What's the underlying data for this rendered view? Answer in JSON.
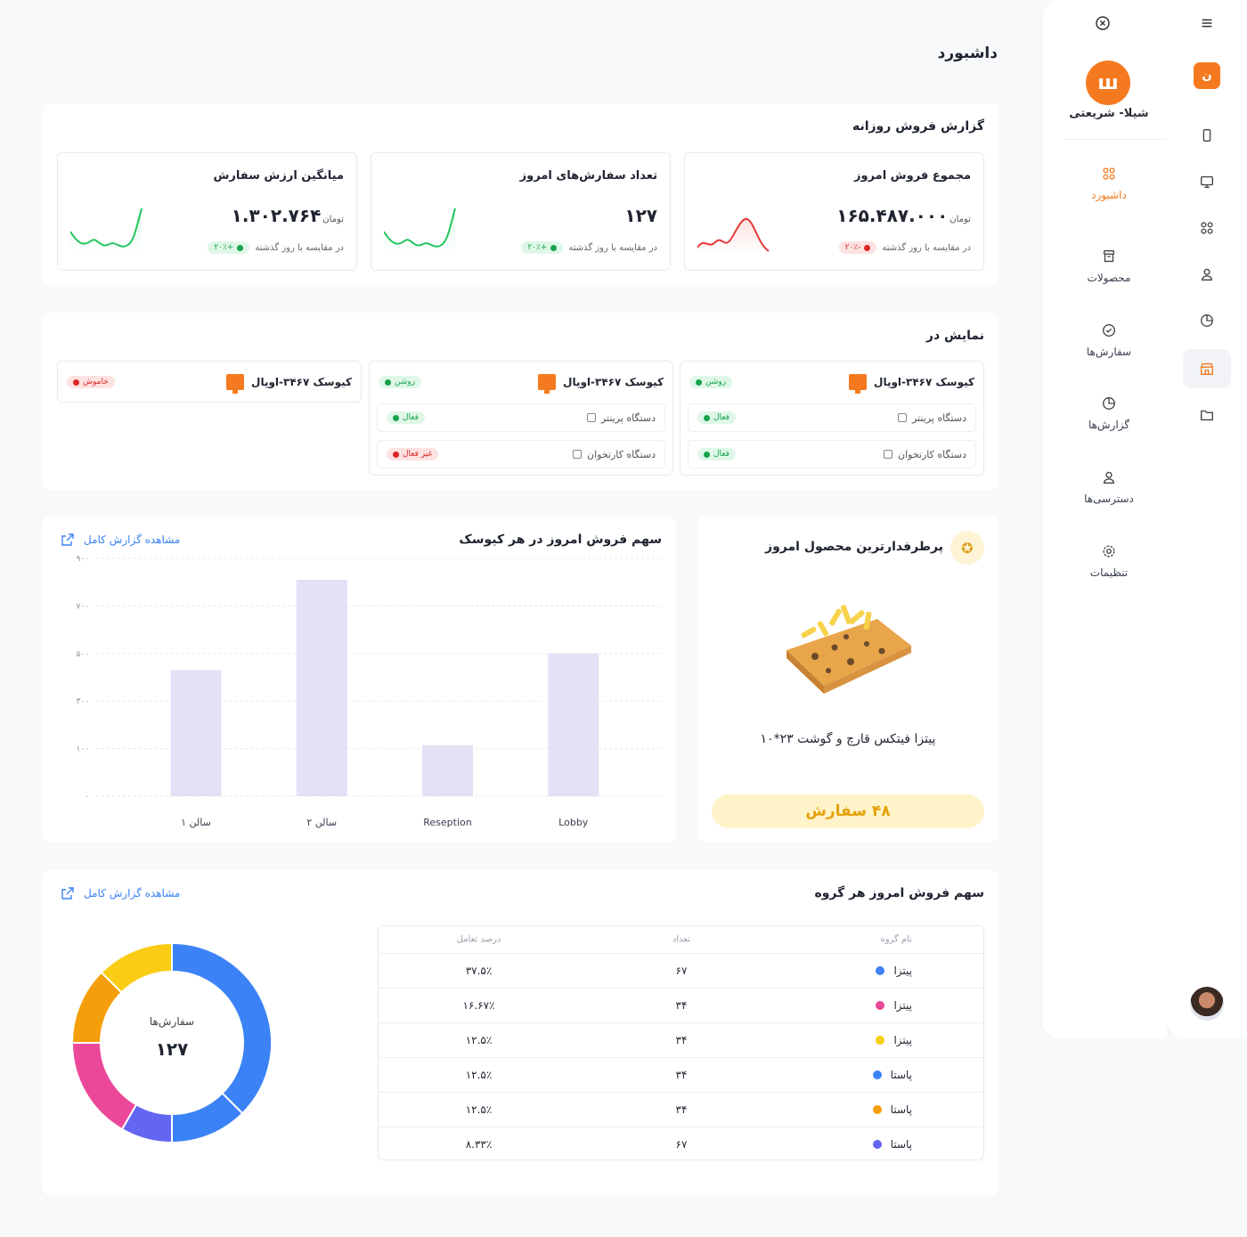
{
  "page_title": "داشبورد",
  "sidebar": {
    "brand_initial": "ن",
    "logo_glyph": "ш",
    "brand_name": "شیلا- شریعتی",
    "items": [
      {
        "label": "داشبورد",
        "icon": "grid-icon",
        "active": true
      },
      {
        "label": "محصولات",
        "icon": "archive-icon",
        "active": false
      },
      {
        "label": "سفارش‌ها",
        "icon": "check-circle-icon",
        "active": false
      },
      {
        "label": "گزارش‌ها",
        "icon": "pie-chart-icon",
        "active": false
      },
      {
        "label": "دسترسی‌ها",
        "icon": "user-icon",
        "active": false
      },
      {
        "label": "تنظیمات",
        "icon": "settings-icon",
        "active": false
      }
    ]
  },
  "daily_report": {
    "title": "گزارش فروش روزانه",
    "stats": [
      {
        "title": "مجموع فروش امروز",
        "value": "۱۶۵.۴۸۷.۰۰۰",
        "unit": "تومان",
        "change": "-۲۰٪",
        "trend": "negative",
        "compare_text": "در مقایسه با روز گذشته"
      },
      {
        "title": "تعداد سفارش‌های امروز",
        "value": "۱۲۷",
        "unit": "",
        "change": "+۲۰٪",
        "trend": "positive",
        "compare_text": "در مقایسه با روز گذشته"
      },
      {
        "title": "میانگین ارزش سفارش",
        "value": "۱.۳۰۲.۷۶۴",
        "unit": "تومان",
        "change": "+۲۰٪",
        "trend": "positive",
        "compare_text": "در مقایسه با روز گذشته"
      }
    ]
  },
  "display": {
    "title": "نمایش در",
    "kiosks": [
      {
        "name": "کیوسک ۳۴۶۷-اوپال",
        "status": "روشن",
        "state": "on",
        "devices": [
          {
            "name": "دستگاه پرینتر",
            "status": "فعال",
            "state": "on"
          },
          {
            "name": "دستگاه کارتخوان",
            "status": "فعال",
            "state": "on"
          }
        ]
      },
      {
        "name": "کیوسک ۳۴۶۷-اوپال",
        "status": "روشن",
        "state": "on",
        "devices": [
          {
            "name": "دستگاه پرینتر",
            "status": "فعال",
            "state": "on"
          },
          {
            "name": "دستگاه کارتخوان",
            "status": "غیر فعال",
            "state": "off"
          }
        ]
      },
      {
        "name": "کیوسک ۳۴۶۷-اوپال",
        "status": "خاموش",
        "state": "off",
        "devices": []
      }
    ]
  },
  "top_product": {
    "title": "پرطرفدارترین محصول امروز",
    "name": "پیتزا فیتکس قارچ و گوشت ۲۳*۱۰",
    "orders": "۴۸ سفارش"
  },
  "kiosk_sales": {
    "title": "سهم فروش امروز در هر کیوسک",
    "link": "مشاهده گزارش کامل"
  },
  "chart_data": {
    "type": "bar",
    "title": "سهم فروش امروز در هر کیوسک",
    "categories": [
      "سالن ۱",
      "سالن ۲",
      "Reseption",
      "Lobby"
    ],
    "values": [
      530,
      910,
      215,
      600
    ],
    "yticks": [
      "۹۰۰",
      "۷۰۰",
      "۵۰۰",
      "۳۰۰",
      "۱۰۰",
      "۰"
    ],
    "ylim": [
      0,
      1000
    ],
    "grid": true,
    "bar_color": "#e4e1f6"
  },
  "group_sales": {
    "title": "سهم فروش امروز هر گروه",
    "link": "مشاهده گزارش کامل",
    "columns": {
      "name": "نام گروه",
      "count": "تعداد",
      "pct": "درصد تعامل"
    },
    "rows": [
      {
        "name": "پیتزا",
        "color": "#3b82f6",
        "count": "۶۷",
        "pct": "۳۷.۵٪"
      },
      {
        "name": "پیتزا",
        "color": "#ec4899",
        "count": "۳۴",
        "pct": "۱۶.۶۷٪"
      },
      {
        "name": "پیتزا",
        "color": "#facc15",
        "count": "۳۴",
        "pct": "۱۲.۵٪"
      },
      {
        "name": "پاستا",
        "color": "#3b82f6",
        "count": "۳۴",
        "pct": "۱۲.۵٪"
      },
      {
        "name": "پاستا",
        "color": "#f59e0b",
        "count": "۳۴",
        "pct": "۱۲.۵٪"
      },
      {
        "name": "پاستا",
        "color": "#6366f1",
        "count": "۶۷",
        "pct": "۸.۳۳٪"
      }
    ],
    "donut": {
      "label": "سفارش‌ها",
      "value": "۱۲۷",
      "segments": [
        {
          "color": "#3b82f6",
          "share": 0.375
        },
        {
          "color": "#3b82f6",
          "share": 0.125
        },
        {
          "color": "#6366f1",
          "share": 0.0833
        },
        {
          "color": "#ec4899",
          "share": 0.1667
        },
        {
          "color": "#f59e0b",
          "share": 0.125
        },
        {
          "color": "#facc15",
          "share": 0.125
        }
      ]
    }
  }
}
